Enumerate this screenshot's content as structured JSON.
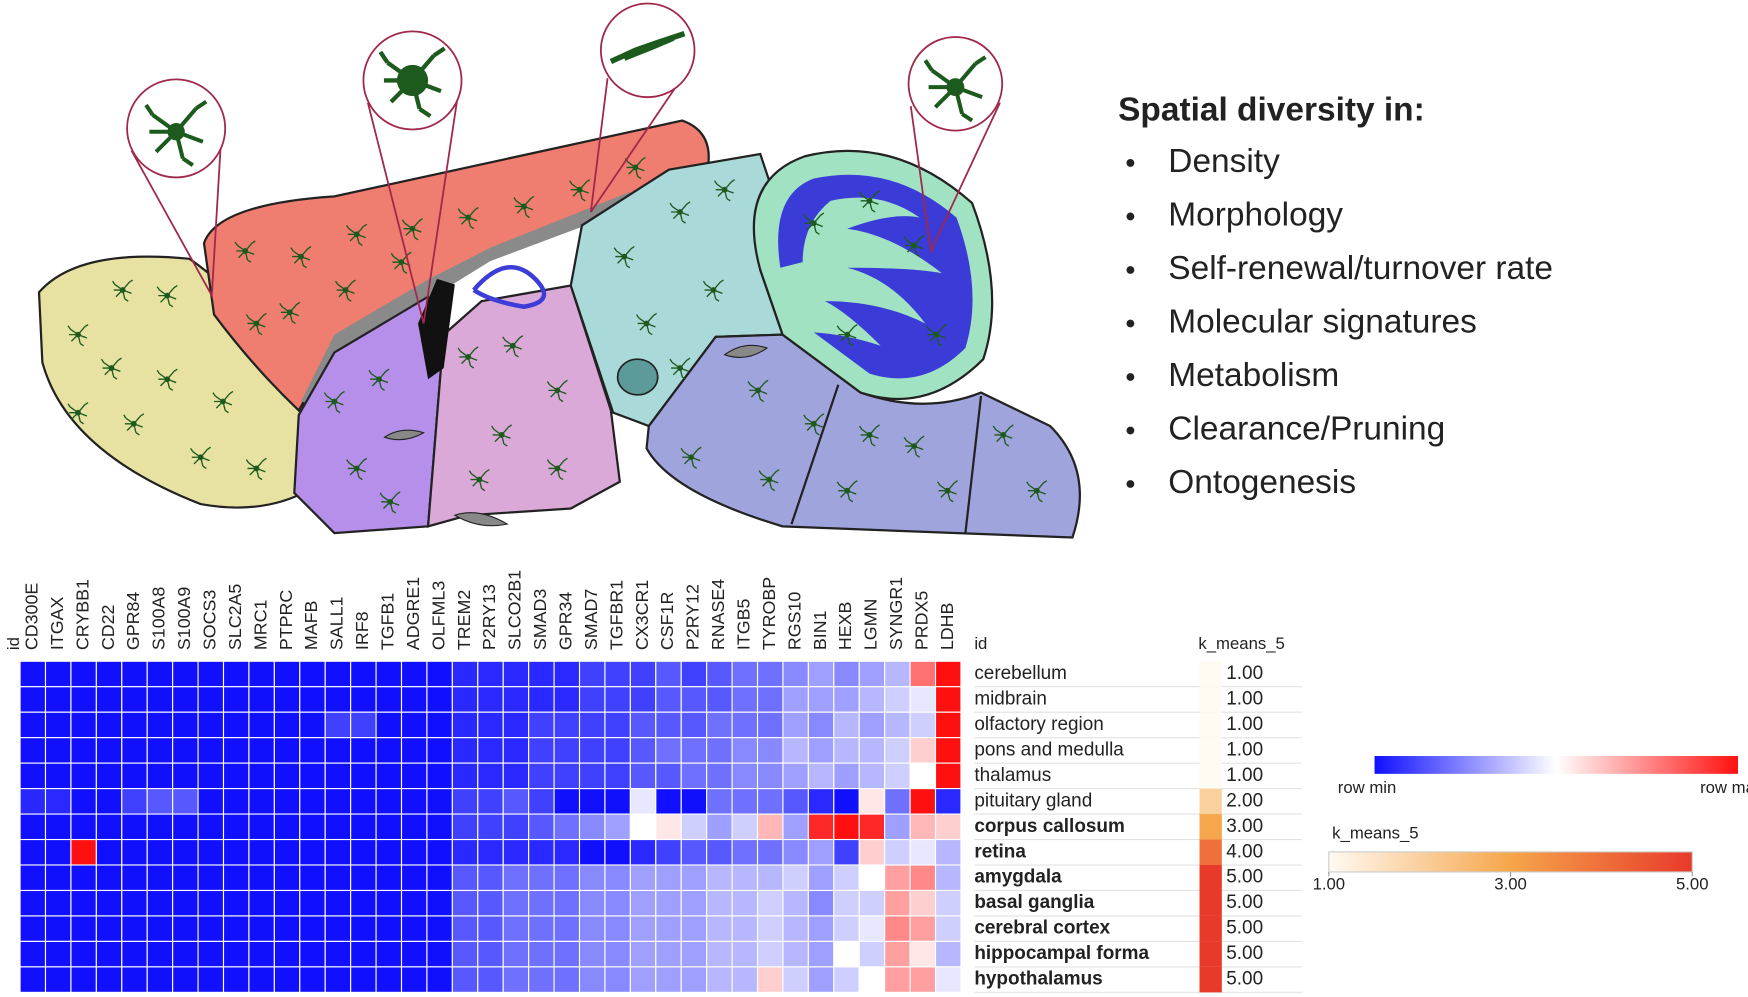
{
  "panel": {
    "title": "Spatial diversity in:",
    "bullets": [
      "Density",
      "Morphology",
      "Self-renewal/turnover rate",
      "Molecular signatures",
      "Metabolism",
      "Clearance/Pruning",
      "Ontogenesis"
    ]
  },
  "heatmap": {
    "column_header": "id",
    "row_header": "id",
    "columns": [
      "CD300E",
      "ITGAX",
      "CRYBB1",
      "CD22",
      "GPR84",
      "S100A8",
      "S100A9",
      "SOCS3",
      "SLC2A5",
      "MRC1",
      "PTPRC",
      "MAFB",
      "SALL1",
      "IRF8",
      "TGFB1",
      "ADGRE1",
      "OLFML3",
      "TREM2",
      "P2RY13",
      "SLCO2B1",
      "SMAD3",
      "GPR34",
      "SMAD7",
      "TGFBR1",
      "CX3CR1",
      "CSF1R",
      "P2RY12",
      "RNASE4",
      "ITGB5",
      "TYROBP",
      "RGS10",
      "BIN1",
      "HEXB",
      "LGMN",
      "SYNGR1",
      "PRDX5",
      "LDHB"
    ],
    "rows": [
      {
        "label": "cerebellum",
        "bold": false
      },
      {
        "label": "midbrain",
        "bold": false
      },
      {
        "label": "olfactory region",
        "bold": false
      },
      {
        "label": "pons and medulla",
        "bold": false
      },
      {
        "label": "thalamus",
        "bold": false
      },
      {
        "label": "pituitary gland",
        "bold": false
      },
      {
        "label": "corpus callosum",
        "bold": true
      },
      {
        "label": "retina",
        "bold": true
      },
      {
        "label": "amygdala",
        "bold": true
      },
      {
        "label": "basal ganglia",
        "bold": true
      },
      {
        "label": "cerebral cortex",
        "bold": true
      },
      {
        "label": "hippocampal forma",
        "bold": true
      },
      {
        "label": "hypothalamus",
        "bold": true
      }
    ],
    "values": [
      [
        0,
        0,
        0,
        0,
        0,
        0,
        0,
        0,
        0,
        0,
        0,
        0,
        0,
        0,
        0,
        0,
        0,
        0.05,
        0.05,
        0.05,
        0.05,
        0.05,
        0.1,
        0.1,
        0.1,
        0.15,
        0.1,
        0.15,
        0.2,
        0.2,
        0.25,
        0.3,
        0.25,
        0.3,
        0.35,
        0.8,
        1
      ],
      [
        0,
        0,
        0,
        0,
        0,
        0,
        0,
        0,
        0,
        0,
        0,
        0,
        0,
        0,
        0,
        0,
        0,
        0.05,
        0.05,
        0.05,
        0.05,
        0.05,
        0.1,
        0.1,
        0.1,
        0.15,
        0.15,
        0.15,
        0.2,
        0.2,
        0.3,
        0.3,
        0.3,
        0.35,
        0.4,
        0.45,
        1
      ],
      [
        0,
        0,
        0,
        0,
        0,
        0,
        0,
        0,
        0,
        0,
        0,
        0,
        0.1,
        0.1,
        0,
        0,
        0,
        0.05,
        0.05,
        0.05,
        0.1,
        0.1,
        0.1,
        0.1,
        0.15,
        0.15,
        0.15,
        0.2,
        0.2,
        0.2,
        0.3,
        0.25,
        0.35,
        0.3,
        0.35,
        0.4,
        1
      ],
      [
        0,
        0,
        0,
        0,
        0,
        0,
        0,
        0,
        0,
        0,
        0,
        0,
        0,
        0,
        0,
        0,
        0,
        0.05,
        0.05,
        0.05,
        0.1,
        0.1,
        0.1,
        0.1,
        0.15,
        0.2,
        0.2,
        0.2,
        0.25,
        0.25,
        0.35,
        0.3,
        0.35,
        0.35,
        0.4,
        0.6,
        1
      ],
      [
        0,
        0,
        0,
        0,
        0,
        0,
        0,
        0,
        0,
        0,
        0,
        0,
        0,
        0,
        0,
        0,
        0,
        0.05,
        0.05,
        0.05,
        0.1,
        0.1,
        0.1,
        0.1,
        0.15,
        0.15,
        0.2,
        0.2,
        0.25,
        0.25,
        0.3,
        0.35,
        0.3,
        0.35,
        0.4,
        0.5,
        1
      ],
      [
        0.05,
        0.05,
        0,
        0,
        0.1,
        0.15,
        0.15,
        0,
        0,
        0,
        0,
        0,
        0,
        0,
        0,
        0,
        0,
        0.1,
        0.1,
        0.15,
        0.1,
        0,
        0,
        0,
        0.45,
        0,
        0,
        0.2,
        0.2,
        0.2,
        0.15,
        0.05,
        0,
        0.55,
        0.2,
        1,
        0.05
      ],
      [
        0,
        0,
        0,
        0,
        0,
        0,
        0,
        0,
        0,
        0,
        0,
        0,
        0,
        0,
        0,
        0,
        0,
        0.1,
        0.1,
        0.1,
        0.15,
        0.2,
        0.25,
        0.3,
        0.5,
        0.55,
        0.4,
        0.3,
        0.4,
        0.65,
        0.3,
        0.95,
        1,
        0.95,
        0.3,
        0.65,
        0.6
      ],
      [
        0,
        0,
        1,
        0,
        0,
        0,
        0,
        0,
        0,
        0,
        0,
        0,
        0,
        0,
        0,
        0,
        0,
        0.05,
        0.05,
        0.05,
        0.05,
        0.05,
        0,
        0,
        0.05,
        0.1,
        0.15,
        0.15,
        0.2,
        0.2,
        0.25,
        0.3,
        0.1,
        0.6,
        0.4,
        0.45,
        0.35
      ],
      [
        0,
        0,
        0,
        0,
        0,
        0,
        0,
        0,
        0,
        0,
        0,
        0,
        0,
        0,
        0,
        0,
        0,
        0.15,
        0.15,
        0.2,
        0.2,
        0.2,
        0.25,
        0.25,
        0.3,
        0.3,
        0.3,
        0.35,
        0.35,
        0.35,
        0.4,
        0.3,
        0.4,
        0.5,
        0.7,
        0.75,
        0.35
      ],
      [
        0,
        0,
        0,
        0,
        0,
        0,
        0,
        0,
        0,
        0,
        0,
        0,
        0,
        0,
        0,
        0,
        0,
        0.15,
        0.15,
        0.2,
        0.2,
        0.2,
        0.25,
        0.25,
        0.3,
        0.3,
        0.3,
        0.35,
        0.35,
        0.4,
        0.35,
        0.25,
        0.4,
        0.4,
        0.7,
        0.6,
        0.4
      ],
      [
        0,
        0,
        0,
        0,
        0,
        0,
        0,
        0,
        0,
        0,
        0,
        0,
        0,
        0,
        0,
        0,
        0,
        0.15,
        0.15,
        0.2,
        0.2,
        0.2,
        0.25,
        0.25,
        0.3,
        0.3,
        0.3,
        0.35,
        0.35,
        0.4,
        0.35,
        0.3,
        0.4,
        0.45,
        0.75,
        0.7,
        0.4
      ],
      [
        0,
        0,
        0,
        0,
        0,
        0,
        0,
        0,
        0,
        0,
        0,
        0,
        0,
        0,
        0,
        0,
        0,
        0.15,
        0.15,
        0.2,
        0.2,
        0.2,
        0.25,
        0.25,
        0.3,
        0.3,
        0.3,
        0.35,
        0.35,
        0.4,
        0.35,
        0.3,
        0.5,
        0.4,
        0.7,
        0.55,
        0.35
      ],
      [
        0,
        0,
        0,
        0,
        0,
        0,
        0,
        0,
        0,
        0,
        0,
        0,
        0,
        0,
        0,
        0,
        0,
        0.15,
        0.15,
        0.2,
        0.2,
        0.2,
        0.25,
        0.25,
        0.3,
        0.3,
        0.3,
        0.35,
        0.35,
        0.6,
        0.4,
        0.3,
        0.4,
        0.5,
        0.7,
        0.7,
        0.45
      ]
    ],
    "color_min": "#1010ff",
    "color_mid": "#ffffff",
    "color_max": "#ff1010",
    "group_header": "k_means_5",
    "groups": [
      1,
      1,
      1,
      1,
      1,
      2,
      3,
      4,
      5,
      5,
      5,
      5,
      5
    ],
    "group_labels": [
      "1.00",
      "1.00",
      "1.00",
      "1.00",
      "1.00",
      "2.00",
      "3.00",
      "4.00",
      "5.00",
      "5.00",
      "5.00",
      "5.00",
      "5.00"
    ],
    "group_colors": [
      "#fffaf2",
      "#f6a64b",
      "#e83a2a"
    ]
  },
  "legend": {
    "row_min": "row min",
    "row_max": "row max",
    "k_title": "k_means_5",
    "k_ticks": [
      {
        "value": 1,
        "label": "1.00"
      },
      {
        "value": 3,
        "label": "3.00"
      },
      {
        "value": 5,
        "label": "5.00"
      }
    ]
  }
}
